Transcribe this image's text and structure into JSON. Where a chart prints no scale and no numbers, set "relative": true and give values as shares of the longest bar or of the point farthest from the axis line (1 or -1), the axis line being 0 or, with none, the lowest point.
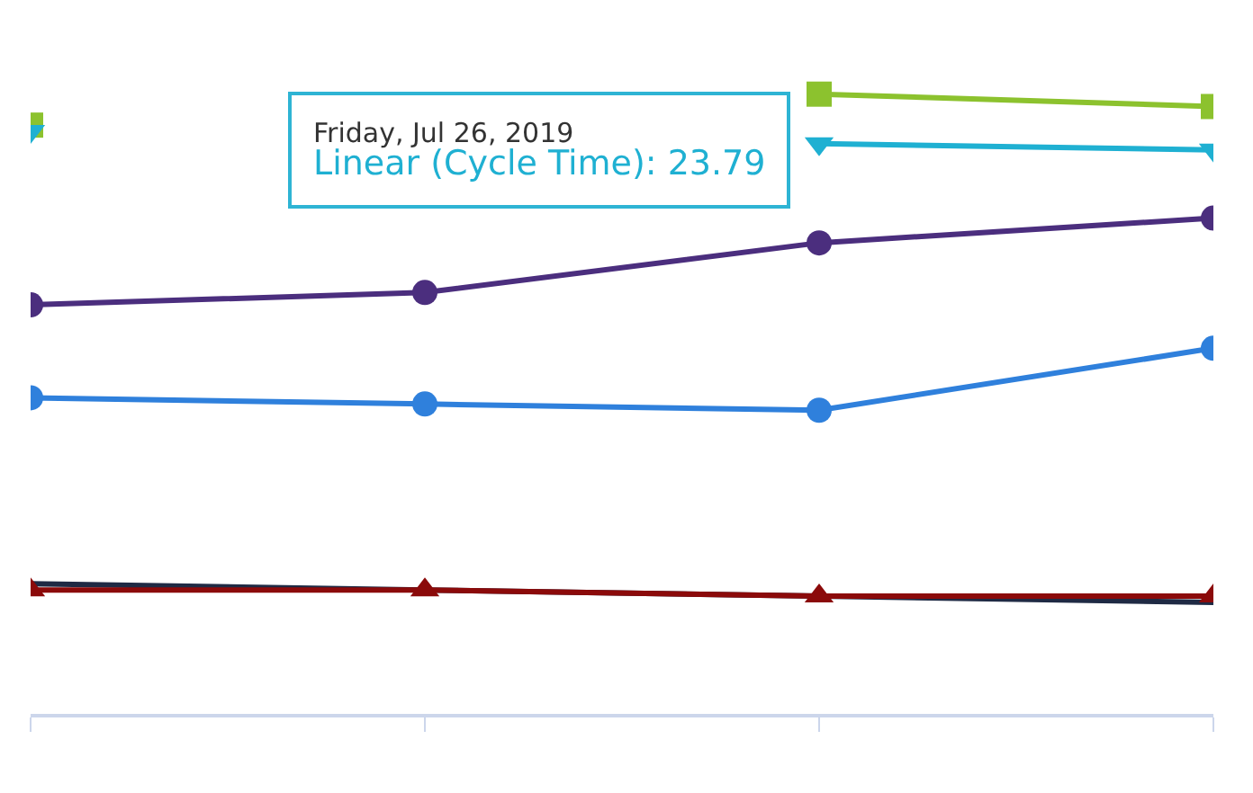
{
  "chart_data": {
    "type": "line",
    "relative": true,
    "tick_labels": false,
    "categories": [
      null,
      null,
      null,
      null
    ],
    "series": [
      {
        "color": "#8cc22e",
        "marker": "square",
        "values": [
          0.95,
          null,
          1.0,
          0.98
        ]
      },
      {
        "color": "#1fb0d2",
        "marker": "triangle-down",
        "values": [
          0.94,
          null,
          0.92,
          0.91
        ]
      },
      {
        "color": "#4b2e7e",
        "marker": "circle",
        "values": [
          0.66,
          0.68,
          0.76,
          0.8
        ]
      },
      {
        "color": "#2f80dc",
        "marker": "circle",
        "values": [
          0.51,
          0.5,
          0.49,
          0.59
        ]
      },
      {
        "color": "#1f2a44",
        "marker": "none",
        "values": [
          0.21,
          0.2,
          0.19,
          0.18
        ]
      },
      {
        "color": "#8b0a0a",
        "marker": "triangle",
        "values": [
          0.2,
          0.2,
          0.19,
          0.19
        ]
      }
    ],
    "annotations": [
      "Friday, Jul 26, 2019",
      "Linear (Cycle Time): 23.79"
    ]
  }
}
